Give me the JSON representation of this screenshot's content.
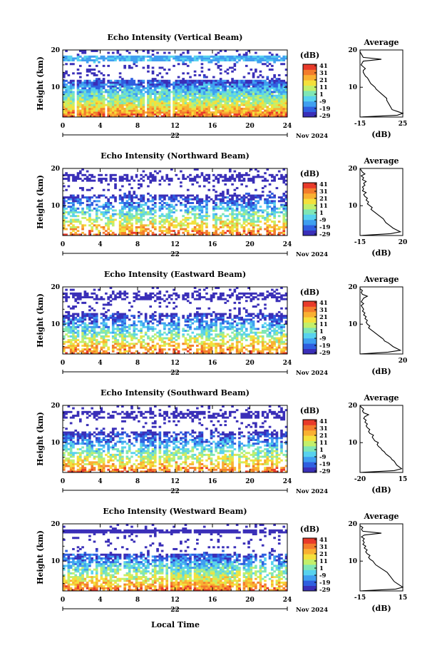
{
  "page": {
    "xaxis_label": "Local Time",
    "month_label": "Nov 2024",
    "day_label": "22",
    "units_label": "(dB)",
    "avg_title": "Average",
    "colorbar_ticks": [
      "41",
      "31",
      "21",
      "11",
      "1",
      "-9",
      "-19",
      "-29"
    ],
    "colors": [
      "#3a2fb8",
      "#2f5fe0",
      "#3f9ff0",
      "#58d2ee",
      "#7fe6b5",
      "#c3ef6a",
      "#f4e03c",
      "#f9b032",
      "#f37c2c",
      "#e83a2a"
    ]
  },
  "chart_data": [
    {
      "type": "heatmap",
      "title": "Echo Intensity (Vertical Beam)",
      "xlabel": "Local Time",
      "ylabel": "Height (km)",
      "xlim": [
        0,
        24
      ],
      "ylim": [
        2,
        20
      ],
      "xticks": [
        0,
        4,
        8,
        12,
        16,
        20,
        24
      ],
      "yticks": [
        10,
        20
      ],
      "zlabel": "(dB)",
      "zlim": [
        -29,
        41
      ],
      "zticks": [
        41,
        31,
        21,
        11,
        1,
        -9,
        -19,
        -29
      ],
      "average": {
        "title": "Average",
        "xlabel": "(dB)",
        "xlim": [
          -15,
          25
        ],
        "xticks": [
          -15,
          25
        ],
        "height_km": [
          2,
          2.5,
          3,
          3.5,
          4,
          4.5,
          5,
          5.5,
          6,
          6.5,
          7,
          7.5,
          8,
          8.5,
          9,
          9.5,
          10,
          10.5,
          11,
          11.5,
          12,
          12.5,
          13,
          13.5,
          14,
          14.5,
          15,
          15.5,
          16,
          16.5,
          17,
          17.5,
          18,
          18.5,
          19,
          19.5,
          20
        ],
        "values_db": [
          -15,
          20,
          25,
          20,
          15,
          14,
          13,
          12,
          11,
          10,
          10,
          8,
          6,
          4,
          2,
          0,
          -1,
          -3,
          -5,
          -6,
          -7,
          -8,
          -10,
          -11,
          -12,
          -12,
          -10,
          -12,
          -14,
          -13,
          -12,
          5,
          -12,
          -13,
          -14,
          -15,
          -15
        ]
      }
    },
    {
      "type": "heatmap",
      "title": "Echo Intensity (Northward Beam)",
      "xlabel": "Local Time",
      "ylabel": "Height (km)",
      "xlim": [
        0,
        24
      ],
      "ylim": [
        2,
        20
      ],
      "xticks": [
        0,
        4,
        8,
        12,
        16,
        20,
        24
      ],
      "yticks": [
        10,
        20
      ],
      "zlabel": "(dB)",
      "zlim": [
        -29,
        41
      ],
      "zticks": [
        41,
        31,
        21,
        11,
        1,
        -9,
        -19,
        -29
      ],
      "average": {
        "title": "Average",
        "xlabel": "(dB)",
        "xlim": [
          -15,
          20
        ],
        "xticks": [
          -15,
          20
        ],
        "height_km": [
          2,
          2.5,
          3,
          3.5,
          4,
          4.5,
          5,
          5.5,
          6,
          6.5,
          7,
          7.5,
          8,
          8.5,
          9,
          9.5,
          10,
          10.5,
          11,
          11.5,
          12,
          12.5,
          13,
          13.5,
          14,
          14.5,
          15,
          15.5,
          16,
          16.5,
          17,
          17.5,
          18,
          18.5,
          19,
          19.5,
          20
        ],
        "values_db": [
          -15,
          10,
          18,
          15,
          12,
          10,
          8,
          6,
          5,
          4,
          2,
          0,
          -2,
          -4,
          -6,
          -5,
          -7,
          -9,
          -8,
          -10,
          -9,
          -11,
          -12,
          -10,
          -13,
          -12,
          -13,
          -11,
          -12,
          -10,
          -13,
          -12,
          -14,
          -11,
          -13,
          -14,
          -15
        ]
      }
    },
    {
      "type": "heatmap",
      "title": "Echo Intensity (Eastward Beam)",
      "xlabel": "Local Time",
      "ylabel": "Height (km)",
      "xlim": [
        0,
        24
      ],
      "ylim": [
        2,
        20
      ],
      "xticks": [
        0,
        4,
        8,
        12,
        16,
        20,
        24
      ],
      "yticks": [
        10,
        20
      ],
      "zlabel": "(dB)",
      "zlim": [
        -29,
        41
      ],
      "zticks": [
        41,
        31,
        21,
        11,
        1,
        -9,
        -19,
        -29
      ],
      "average": {
        "title": "Average",
        "xlabel": "(dB)",
        "xlim": [
          -15,
          20
        ],
        "xticks": [
          20
        ],
        "height_km": [
          2,
          2.5,
          3,
          3.5,
          4,
          4.5,
          5,
          5.5,
          6,
          6.5,
          7,
          7.5,
          8,
          8.5,
          9,
          9.5,
          10,
          10.5,
          11,
          11.5,
          12,
          12.5,
          13,
          13.5,
          14,
          14.5,
          15,
          15.5,
          16,
          16.5,
          17,
          17.5,
          18,
          18.5,
          19,
          19.5,
          20
        ],
        "values_db": [
          -15,
          8,
          18,
          15,
          12,
          10,
          8,
          5,
          4,
          2,
          0,
          -2,
          -4,
          -6,
          -8,
          -7,
          -9,
          -10,
          -9,
          -11,
          -10,
          -12,
          -11,
          -13,
          -12,
          -13,
          -14,
          -12,
          -14,
          -13,
          -12,
          -9,
          -13,
          -14,
          -13,
          -15,
          -15
        ]
      }
    },
    {
      "type": "heatmap",
      "title": "Echo Intensity (Southward Beam)",
      "xlabel": "Local Time",
      "ylabel": "Height (km)",
      "xlim": [
        0,
        24
      ],
      "ylim": [
        2,
        20
      ],
      "xticks": [
        0,
        4,
        8,
        12,
        16,
        20,
        24
      ],
      "yticks": [
        10,
        20
      ],
      "zlabel": "(dB)",
      "zlim": [
        -29,
        41
      ],
      "zticks": [
        41,
        31,
        21,
        11,
        1,
        -9,
        -19,
        -29
      ],
      "average": {
        "title": "Average",
        "xlabel": "(dB)",
        "xlim": [
          -20,
          15
        ],
        "xticks": [
          -20,
          15
        ],
        "height_km": [
          2,
          2.5,
          3,
          3.5,
          4,
          4.5,
          5,
          5.5,
          6,
          6.5,
          7,
          7.5,
          8,
          8.5,
          9,
          9.5,
          10,
          10.5,
          11,
          11.5,
          12,
          12.5,
          13,
          13.5,
          14,
          14.5,
          15,
          15.5,
          16,
          16.5,
          17,
          17.5,
          18,
          18.5,
          19,
          19.5,
          20
        ],
        "values_db": [
          -20,
          8,
          14,
          12,
          10,
          9,
          8,
          6,
          5,
          3,
          1,
          0,
          -2,
          -3,
          -5,
          -6,
          -5,
          -8,
          -9,
          -10,
          -9,
          -12,
          -13,
          -12,
          -14,
          -15,
          -14,
          -16,
          -15,
          -17,
          -16,
          -13,
          -17,
          -18,
          -17,
          -19,
          -20
        ]
      }
    },
    {
      "type": "heatmap",
      "title": "Echo Intensity (Westward Beam)",
      "xlabel": "Local Time",
      "ylabel": "Height (km)",
      "xlim": [
        0,
        24
      ],
      "ylim": [
        2,
        20
      ],
      "xticks": [
        0,
        4,
        8,
        12,
        16,
        20,
        24
      ],
      "yticks": [
        10,
        20
      ],
      "zlabel": "(dB)",
      "zlim": [
        -29,
        41
      ],
      "zticks": [
        41,
        31,
        21,
        11,
        1,
        -9,
        -19,
        -29
      ],
      "average": {
        "title": "Average",
        "xlabel": "(dB)",
        "xlim": [
          -15,
          15
        ],
        "xticks": [
          -15,
          15
        ],
        "height_km": [
          2,
          2.5,
          3,
          3.5,
          4,
          4.5,
          5,
          5.5,
          6,
          6.5,
          7,
          7.5,
          8,
          8.5,
          9,
          9.5,
          10,
          10.5,
          11,
          11.5,
          12,
          12.5,
          13,
          13.5,
          14,
          14.5,
          15,
          15.5,
          16,
          16.5,
          17,
          17.5,
          18,
          18.5,
          19,
          19.5,
          20
        ],
        "values_db": [
          -15,
          10,
          15,
          13,
          11,
          9,
          8,
          7,
          6,
          5,
          4,
          2,
          0,
          -2,
          -4,
          -5,
          -6,
          -8,
          -9,
          -8,
          -10,
          -11,
          -10,
          -12,
          -11,
          -13,
          -12,
          -13,
          -12,
          -14,
          -12,
          0,
          -13,
          -14,
          -13,
          -15,
          -15
        ]
      }
    }
  ]
}
